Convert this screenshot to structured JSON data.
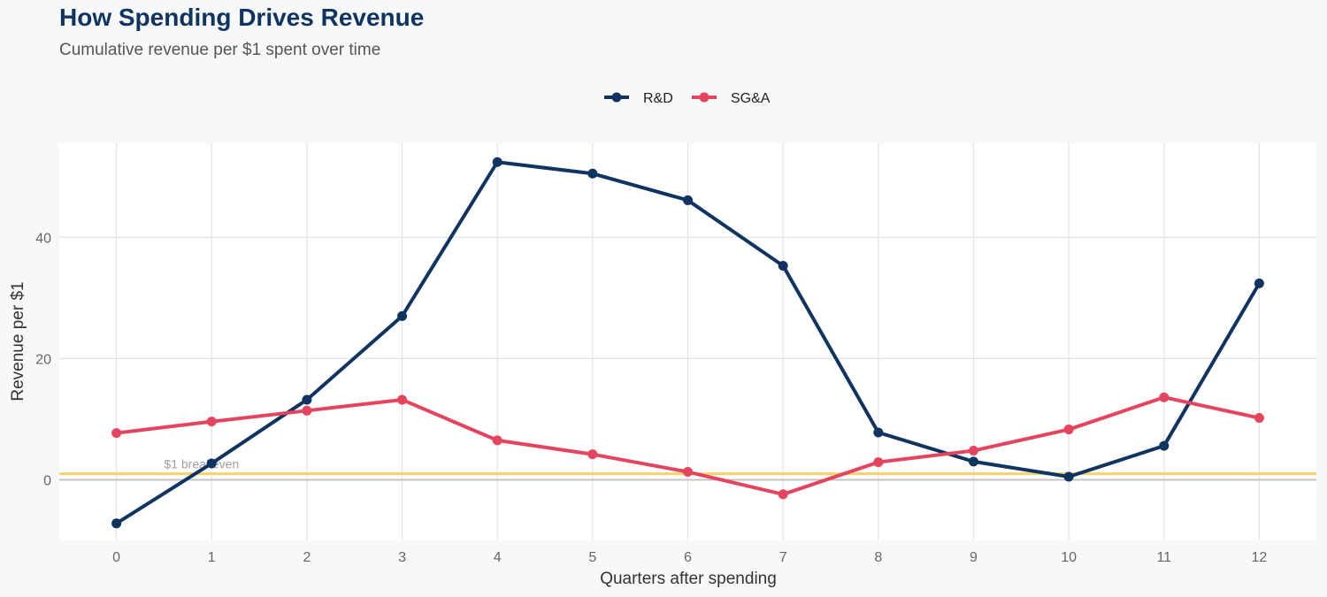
{
  "chart_data": {
    "type": "line",
    "title": "How Spending Drives Revenue",
    "subtitle": "Cumulative revenue per $1 spent over time",
    "xlabel": "Quarters after spending",
    "ylabel": "Revenue per $1",
    "x": [
      0,
      1,
      2,
      3,
      4,
      5,
      6,
      7,
      8,
      9,
      10,
      11,
      12
    ],
    "xlim": [
      -0.6,
      12.6
    ],
    "ylim": [
      -10,
      55.5
    ],
    "yticks": [
      0,
      20,
      40
    ],
    "grid": true,
    "legend_position": "top-center",
    "series": [
      {
        "name": "R&D",
        "color": "#0f3460",
        "values": [
          -7.2,
          2.7,
          13.2,
          27.0,
          52.4,
          50.5,
          46.1,
          35.3,
          7.8,
          3.0,
          0.5,
          5.6,
          32.4
        ]
      },
      {
        "name": "SG&A",
        "color": "#e5445f",
        "values": [
          7.7,
          9.6,
          11.4,
          13.2,
          6.5,
          4.2,
          1.3,
          -2.4,
          2.9,
          4.8,
          8.3,
          13.6,
          10.2
        ]
      }
    ],
    "reference_line": {
      "y": 1,
      "label": "$1 breakeven",
      "color": "#f7d26b"
    },
    "zero_line_color": "#c4c4c4"
  }
}
